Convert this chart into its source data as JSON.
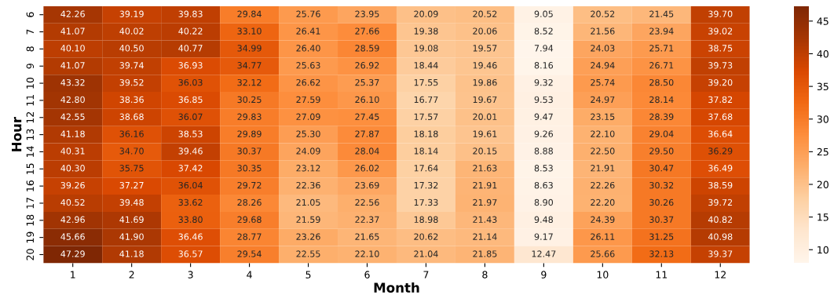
{
  "chart_data": {
    "type": "heatmap",
    "xlabel": "Month",
    "ylabel": "Hour",
    "categories": [
      "1",
      "2",
      "3",
      "4",
      "5",
      "6",
      "7",
      "8",
      "9",
      "10",
      "11",
      "12"
    ],
    "y_categories": [
      "6",
      "7",
      "8",
      "9",
      "10",
      "11",
      "12",
      "13",
      "14",
      "15",
      "16",
      "17",
      "18",
      "19",
      "20"
    ],
    "cells": [
      [
        42.26,
        39.19,
        39.83,
        29.84,
        25.76,
        23.95,
        20.09,
        20.52,
        9.05,
        20.52,
        21.45,
        39.7
      ],
      [
        41.07,
        40.02,
        40.22,
        33.1,
        26.41,
        27.66,
        19.38,
        20.06,
        8.52,
        21.56,
        23.94,
        39.02
      ],
      [
        40.1,
        40.5,
        40.77,
        34.99,
        26.4,
        28.59,
        19.08,
        19.57,
        7.94,
        24.03,
        25.71,
        38.75
      ],
      [
        41.07,
        39.74,
        36.93,
        34.77,
        25.63,
        26.92,
        18.44,
        19.46,
        8.16,
        24.94,
        26.71,
        39.73
      ],
      [
        43.32,
        39.52,
        36.03,
        32.12,
        26.62,
        25.37,
        17.55,
        19.86,
        9.32,
        25.74,
        28.5,
        39.2
      ],
      [
        42.8,
        38.36,
        36.85,
        30.25,
        27.59,
        26.1,
        16.77,
        19.67,
        9.53,
        24.97,
        28.14,
        37.82
      ],
      [
        42.55,
        38.68,
        36.07,
        29.83,
        27.09,
        27.45,
        17.57,
        20.01,
        9.47,
        23.15,
        28.39,
        37.68
      ],
      [
        41.18,
        36.16,
        38.53,
        29.89,
        25.3,
        27.87,
        18.18,
        19.61,
        9.26,
        22.1,
        29.04,
        36.64
      ],
      [
        40.31,
        34.7,
        39.46,
        30.37,
        24.09,
        28.04,
        18.14,
        20.15,
        8.88,
        22.5,
        29.5,
        36.29
      ],
      [
        40.3,
        35.75,
        37.42,
        30.35,
        23.12,
        26.02,
        17.64,
        21.63,
        8.53,
        21.91,
        30.47,
        36.49
      ],
      [
        39.26,
        37.27,
        36.04,
        29.72,
        22.36,
        23.69,
        17.32,
        21.91,
        8.63,
        22.26,
        30.32,
        38.59
      ],
      [
        40.52,
        39.48,
        33.62,
        28.26,
        21.05,
        22.56,
        17.33,
        21.97,
        8.9,
        22.2,
        30.26,
        39.72
      ],
      [
        42.96,
        41.69,
        33.8,
        29.68,
        21.59,
        22.37,
        18.98,
        21.43,
        9.48,
        24.39,
        30.37,
        40.82
      ],
      [
        45.66,
        41.9,
        36.46,
        28.77,
        23.26,
        21.65,
        20.62,
        21.14,
        9.17,
        26.11,
        31.25,
        40.98
      ],
      [
        47.29,
        41.18,
        36.57,
        29.54,
        22.55,
        22.1,
        21.04,
        21.85,
        12.47,
        25.66,
        32.13,
        39.37
      ]
    ],
    "cell_labels": [
      [
        "42.26",
        "39.19",
        "39.83",
        "29.84",
        "25.76",
        "23.95",
        "20.09",
        "20.52",
        "9.05",
        "20.52",
        "21.45",
        "39.70"
      ],
      [
        "41.07",
        "40.02",
        "40.22",
        "33.10",
        "26.41",
        "27.66",
        "19.38",
        "20.06",
        "8.52",
        "21.56",
        "23.94",
        "39.02"
      ],
      [
        "40.10",
        "40.50",
        "40.77",
        "34.99",
        "26.40",
        "28.59",
        "19.08",
        "19.57",
        "7.94",
        "24.03",
        "25.71",
        "38.75"
      ],
      [
        "41.07",
        "39.74",
        "36.93",
        "34.77",
        "25.63",
        "26.92",
        "18.44",
        "19.46",
        "8.16",
        "24.94",
        "26.71",
        "39.73"
      ],
      [
        "43.32",
        "39.52",
        "36.03",
        "32.12",
        "26.62",
        "25.37",
        "17.55",
        "19.86",
        "9.32",
        "25.74",
        "28.50",
        "39.20"
      ],
      [
        "42.80",
        "38.36",
        "36.85",
        "30.25",
        "27.59",
        "26.10",
        "16.77",
        "19.67",
        "9.53",
        "24.97",
        "28.14",
        "37.82"
      ],
      [
        "42.55",
        "38.68",
        "36.07",
        "29.83",
        "27.09",
        "27.45",
        "17.57",
        "20.01",
        "9.47",
        "23.15",
        "28.39",
        "37.68"
      ],
      [
        "41.18",
        "36.16",
        "38.53",
        "29.89",
        "25.30",
        "27.87",
        "18.18",
        "19.61",
        "9.26",
        "22.10",
        "29.04",
        "36.64"
      ],
      [
        "40.31",
        "34.70",
        "39.46",
        "30.37",
        "24.09",
        "28.04",
        "18.14",
        "20.15",
        "8.88",
        "22.50",
        "29.50",
        "36.29"
      ],
      [
        "40.30",
        "35.75",
        "37.42",
        "30.35",
        "23.12",
        "26.02",
        "17.64",
        "21.63",
        "8.53",
        "21.91",
        "30.47",
        "36.49"
      ],
      [
        "39.26",
        "37.27",
        "36.04",
        "29.72",
        "22.36",
        "23.69",
        "17.32",
        "21.91",
        "8.63",
        "22.26",
        "30.32",
        "38.59"
      ],
      [
        "40.52",
        "39.48",
        "33.62",
        "28.26",
        "21.05",
        "22.56",
        "17.33",
        "21.97",
        "8.90",
        "22.20",
        "30.26",
        "39.72"
      ],
      [
        "42.96",
        "41.69",
        "33.80",
        "29.68",
        "21.59",
        "22.37",
        "18.98",
        "21.43",
        "9.48",
        "24.39",
        "30.37",
        "40.82"
      ],
      [
        "45.66",
        "41.90",
        "36.46",
        "28.77",
        "23.26",
        "21.65",
        "20.62",
        "21.14",
        "9.17",
        "26.11",
        "31.25",
        "40.98"
      ],
      [
        "47.29",
        "41.18",
        "36.57",
        "29.54",
        "22.55",
        "22.10",
        "21.04",
        "21.85",
        "12.47",
        "25.66",
        "32.13",
        "39.37"
      ]
    ],
    "clim": [
      7.94,
      47.29
    ],
    "cticks": [
      10,
      15,
      20,
      25,
      30,
      35,
      40,
      45
    ]
  }
}
